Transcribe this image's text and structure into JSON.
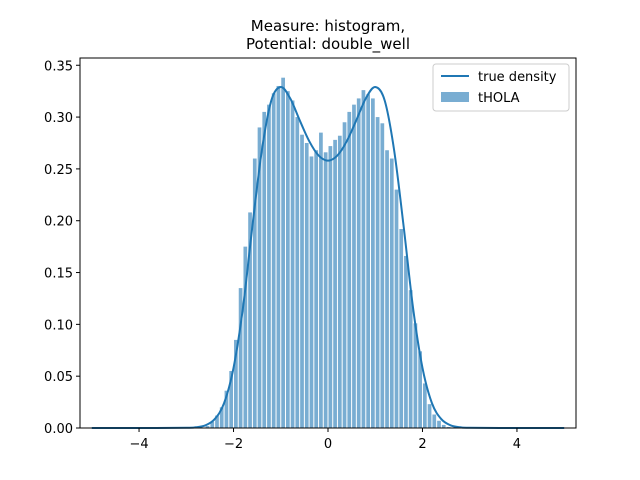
{
  "chart_data": {
    "type": "bar",
    "title_lines": [
      "Measure: histogram,",
      "Potential: double_well"
    ],
    "xlabel": "",
    "ylabel": "",
    "xlim": [
      -5.25,
      5.25
    ],
    "ylim": [
      0,
      0.357
    ],
    "x_ticks": [
      -4,
      -2,
      0,
      2,
      4
    ],
    "y_ticks": [
      0.0,
      0.05,
      0.1,
      0.15,
      0.2,
      0.25,
      0.3,
      0.35
    ],
    "x_tick_labels": [
      "−4",
      "−2",
      "0",
      "2",
      "4"
    ],
    "y_tick_labels": [
      "0.00",
      "0.05",
      "0.10",
      "0.15",
      "0.20",
      "0.25",
      "0.30",
      "0.35"
    ],
    "grid": false,
    "legend": {
      "placement": "top-right",
      "entries": [
        {
          "label": "true density",
          "kind": "line"
        },
        {
          "label": "tHOLA",
          "kind": "patch"
        }
      ]
    },
    "colors": {
      "line": "#1f77b4",
      "bars": "#1f77b4",
      "bar_alpha": 0.6
    },
    "series": [
      {
        "name": "tHOLA",
        "kind": "histogram",
        "bin_width": 0.1,
        "bin_centers": [
          -2.55,
          -2.45,
          -2.35,
          -2.25,
          -2.15,
          -2.05,
          -1.95,
          -1.85,
          -1.75,
          -1.65,
          -1.55,
          -1.45,
          -1.35,
          -1.25,
          -1.15,
          -1.05,
          -0.95,
          -0.85,
          -0.75,
          -0.65,
          -0.55,
          -0.45,
          -0.35,
          -0.25,
          -0.15,
          -0.05,
          0.05,
          0.15,
          0.25,
          0.35,
          0.45,
          0.55,
          0.65,
          0.75,
          0.85,
          0.95,
          1.05,
          1.15,
          1.25,
          1.35,
          1.45,
          1.55,
          1.65,
          1.75,
          1.85,
          1.95,
          2.05,
          2.15,
          2.25,
          2.35,
          2.45,
          2.55
        ],
        "values": [
          0.002,
          0.006,
          0.012,
          0.02,
          0.036,
          0.055,
          0.085,
          0.135,
          0.175,
          0.208,
          0.26,
          0.29,
          0.305,
          0.312,
          0.323,
          0.33,
          0.338,
          0.325,
          0.316,
          0.3,
          0.283,
          0.275,
          0.262,
          0.268,
          0.285,
          0.266,
          0.272,
          0.278,
          0.282,
          0.295,
          0.305,
          0.312,
          0.318,
          0.326,
          0.322,
          0.318,
          0.3,
          0.294,
          0.268,
          0.26,
          0.23,
          0.192,
          0.166,
          0.133,
          0.101,
          0.074,
          0.043,
          0.023,
          0.013,
          0.007,
          0.003,
          0.001
        ]
      },
      {
        "name": "true density",
        "kind": "line",
        "x_range": [
          -5,
          5
        ],
        "x": [
          -5.0,
          -4.0,
          -3.0,
          -2.8,
          -2.6,
          -2.4,
          -2.2,
          -2.0,
          -1.8,
          -1.6,
          -1.4,
          -1.2,
          -1.0,
          -0.8,
          -0.6,
          -0.4,
          -0.2,
          0.0,
          0.2,
          0.4,
          0.6,
          0.8,
          1.0,
          1.2,
          1.4,
          1.6,
          1.8,
          2.0,
          2.2,
          2.4,
          2.6,
          2.8,
          3.0,
          4.0,
          5.0
        ],
        "y": [
          0.0,
          0.0,
          0.0002,
          0.0007,
          0.0025,
          0.0085,
          0.024,
          0.058,
          0.116,
          0.195,
          0.268,
          0.316,
          0.329,
          0.318,
          0.297,
          0.277,
          0.263,
          0.258,
          0.263,
          0.277,
          0.297,
          0.318,
          0.329,
          0.316,
          0.268,
          0.195,
          0.116,
          0.058,
          0.024,
          0.0085,
          0.0025,
          0.0007,
          0.0002,
          0.0,
          0.0
        ]
      }
    ]
  }
}
